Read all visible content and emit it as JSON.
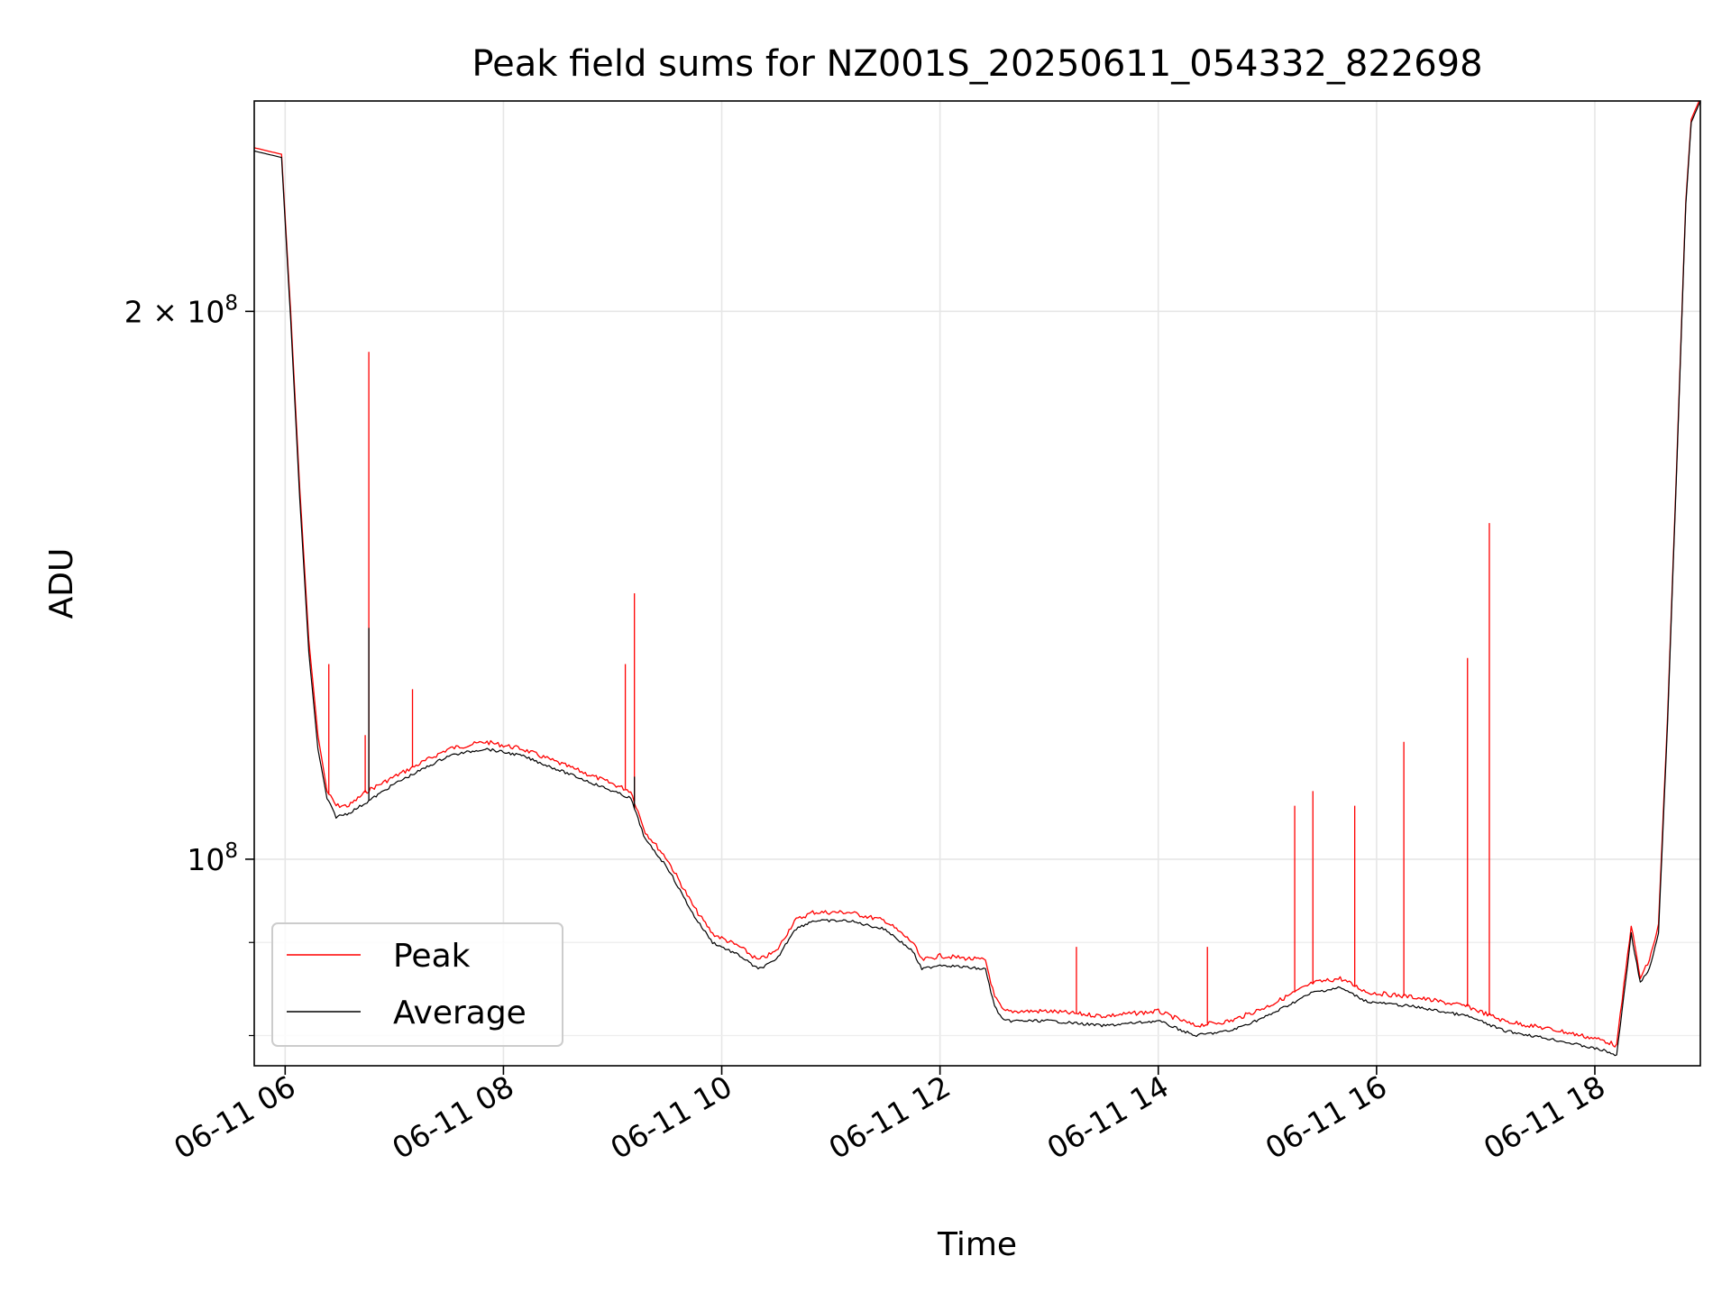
{
  "chart_data": {
    "type": "line",
    "title": "Peak field sums for NZ001S_20250611_054332_822698",
    "xlabel": "Time",
    "ylabel": "ADU",
    "x_axis": "datetime",
    "y_scale": "log",
    "xlim": [
      "2025-06-11 05:43",
      "2025-06-11 18:58"
    ],
    "ylim": [
      77000000,
      261000000
    ],
    "grid": true,
    "legend_position": "lower-left",
    "x_ticks": [
      {
        "x": "2025-06-11 06:00",
        "label": "06-11 06"
      },
      {
        "x": "2025-06-11 08:00",
        "label": "06-11 08"
      },
      {
        "x": "2025-06-11 10:00",
        "label": "06-11 10"
      },
      {
        "x": "2025-06-11 12:00",
        "label": "06-11 12"
      },
      {
        "x": "2025-06-11 14:00",
        "label": "06-11 14"
      },
      {
        "x": "2025-06-11 16:00",
        "label": "06-11 16"
      },
      {
        "x": "2025-06-11 18:00",
        "label": "06-11 18"
      }
    ],
    "y_ticks": [
      {
        "y": 100000000,
        "base": "10",
        "exp": "8",
        "mult": ""
      },
      {
        "y": 200000000,
        "base": "10",
        "exp": "8",
        "mult": "2 × "
      }
    ],
    "series": [
      {
        "name": "Peak",
        "color": "#ff0000",
        "points": [
          [
            "2025-06-11 05:43",
            246000000
          ],
          [
            "2025-06-11 05:58",
            244000000
          ],
          [
            "2025-06-11 06:03",
            200000000
          ],
          [
            "2025-06-11 06:08",
            160000000
          ],
          [
            "2025-06-11 06:13",
            132000000
          ],
          [
            "2025-06-11 06:18",
            117000000
          ],
          [
            "2025-06-11 06:23",
            109000000
          ],
          [
            "2025-06-11 06:28",
            107000000
          ],
          [
            "2025-06-11 06:35",
            107000000
          ],
          [
            "2025-06-11 06:45",
            109000000
          ],
          [
            "2025-06-11 07:00",
            111000000
          ],
          [
            "2025-06-11 07:30",
            115000000
          ],
          [
            "2025-06-11 07:50",
            116000000
          ],
          [
            "2025-06-11 08:10",
            115000000
          ],
          [
            "2025-06-11 08:40",
            112000000
          ],
          [
            "2025-06-11 09:00",
            110000000
          ],
          [
            "2025-06-11 09:10",
            109000000
          ],
          [
            "2025-06-11 09:18",
            103500000
          ],
          [
            "2025-06-11 09:30",
            100000000
          ],
          [
            "2025-06-11 09:45",
            94000000
          ],
          [
            "2025-06-11 09:55",
            91000000
          ],
          [
            "2025-06-11 10:10",
            89500000
          ],
          [
            "2025-06-11 10:20",
            88000000
          ],
          [
            "2025-06-11 10:30",
            89000000
          ],
          [
            "2025-06-11 10:40",
            92500000
          ],
          [
            "2025-06-11 10:50",
            93500000
          ],
          [
            "2025-06-11 11:10",
            93500000
          ],
          [
            "2025-06-11 11:30",
            92500000
          ],
          [
            "2025-06-11 11:45",
            90000000
          ],
          [
            "2025-06-11 11:50",
            88000000
          ],
          [
            "2025-06-11 12:00",
            88500000
          ],
          [
            "2025-06-11 12:25",
            88000000
          ],
          [
            "2025-06-11 12:30",
            84000000
          ],
          [
            "2025-06-11 12:35",
            82500000
          ],
          [
            "2025-06-11 13:00",
            82500000
          ],
          [
            "2025-06-11 13:30",
            82000000
          ],
          [
            "2025-06-11 14:00",
            82500000
          ],
          [
            "2025-06-11 14:20",
            81000000
          ],
          [
            "2025-06-11 14:40",
            81500000
          ],
          [
            "2025-06-11 15:00",
            83000000
          ],
          [
            "2025-06-11 15:25",
            85500000
          ],
          [
            "2025-06-11 15:40",
            86000000
          ],
          [
            "2025-06-11 15:55",
            84500000
          ],
          [
            "2025-06-11 16:20",
            84000000
          ],
          [
            "2025-06-11 16:50",
            83000000
          ],
          [
            "2025-06-11 17:10",
            81500000
          ],
          [
            "2025-06-11 17:40",
            80500000
          ],
          [
            "2025-06-11 18:05",
            79500000
          ],
          [
            "2025-06-11 18:12",
            79000000
          ],
          [
            "2025-06-11 18:20",
            92000000
          ],
          [
            "2025-06-11 18:25",
            86000000
          ],
          [
            "2025-06-11 18:30",
            88000000
          ],
          [
            "2025-06-11 18:35",
            92000000
          ],
          [
            "2025-06-11 18:40",
            120000000
          ],
          [
            "2025-06-11 18:45",
            165000000
          ],
          [
            "2025-06-11 18:50",
            230000000
          ],
          [
            "2025-06-11 18:53",
            255000000
          ],
          [
            "2025-06-11 18:58",
            262000000
          ]
        ],
        "spikes": [
          [
            "2025-06-11 06:24",
            128000000
          ],
          [
            "2025-06-11 06:44",
            117000000
          ],
          [
            "2025-06-11 06:46",
            190000000
          ],
          [
            "2025-06-11 07:10",
            124000000
          ],
          [
            "2025-06-11 09:07",
            128000000
          ],
          [
            "2025-06-11 09:12",
            140000000
          ],
          [
            "2025-06-11 13:15",
            89500000
          ],
          [
            "2025-06-11 14:27",
            89500000
          ],
          [
            "2025-06-11 15:15",
            107000000
          ],
          [
            "2025-06-11 15:25",
            109000000
          ],
          [
            "2025-06-11 15:48",
            107000000
          ],
          [
            "2025-06-11 16:15",
            116000000
          ],
          [
            "2025-06-11 16:50",
            129000000
          ],
          [
            "2025-06-11 17:02",
            153000000
          ]
        ]
      },
      {
        "name": "Average",
        "color": "#000000",
        "points": [
          [
            "2025-06-11 05:43",
            245000000
          ],
          [
            "2025-06-11 05:58",
            243000000
          ],
          [
            "2025-06-11 06:03",
            198000000
          ],
          [
            "2025-06-11 06:08",
            158000000
          ],
          [
            "2025-06-11 06:13",
            130000000
          ],
          [
            "2025-06-11 06:18",
            115000000
          ],
          [
            "2025-06-11 06:23",
            108000000
          ],
          [
            "2025-06-11 06:28",
            105500000
          ],
          [
            "2025-06-11 06:35",
            106000000
          ],
          [
            "2025-06-11 06:45",
            107500000
          ],
          [
            "2025-06-11 07:00",
            110000000
          ],
          [
            "2025-06-11 07:30",
            114000000
          ],
          [
            "2025-06-11 07:50",
            115000000
          ],
          [
            "2025-06-11 08:10",
            114000000
          ],
          [
            "2025-06-11 08:40",
            111000000
          ],
          [
            "2025-06-11 09:00",
            109000000
          ],
          [
            "2025-06-11 09:10",
            108000000
          ],
          [
            "2025-06-11 09:18",
            102500000
          ],
          [
            "2025-06-11 09:30",
            99000000
          ],
          [
            "2025-06-11 09:45",
            93000000
          ],
          [
            "2025-06-11 09:55",
            90000000
          ],
          [
            "2025-06-11 10:10",
            88500000
          ],
          [
            "2025-06-11 10:20",
            87000000
          ],
          [
            "2025-06-11 10:30",
            88000000
          ],
          [
            "2025-06-11 10:40",
            91500000
          ],
          [
            "2025-06-11 10:50",
            92500000
          ],
          [
            "2025-06-11 11:10",
            92500000
          ],
          [
            "2025-06-11 11:30",
            91500000
          ],
          [
            "2025-06-11 11:45",
            89000000
          ],
          [
            "2025-06-11 11:50",
            87000000
          ],
          [
            "2025-06-11 12:00",
            87500000
          ],
          [
            "2025-06-11 12:25",
            87000000
          ],
          [
            "2025-06-11 12:30",
            83000000
          ],
          [
            "2025-06-11 12:35",
            81500000
          ],
          [
            "2025-06-11 13:00",
            81500000
          ],
          [
            "2025-06-11 13:30",
            81000000
          ],
          [
            "2025-06-11 14:00",
            81500000
          ],
          [
            "2025-06-11 14:20",
            80000000
          ],
          [
            "2025-06-11 14:40",
            80500000
          ],
          [
            "2025-06-11 15:00",
            82000000
          ],
          [
            "2025-06-11 15:25",
            84500000
          ],
          [
            "2025-06-11 15:40",
            85000000
          ],
          [
            "2025-06-11 15:55",
            83500000
          ],
          [
            "2025-06-11 16:20",
            83000000
          ],
          [
            "2025-06-11 16:50",
            82000000
          ],
          [
            "2025-06-11 17:10",
            80500000
          ],
          [
            "2025-06-11 17:40",
            79500000
          ],
          [
            "2025-06-11 18:05",
            78500000
          ],
          [
            "2025-06-11 18:12",
            78000000
          ],
          [
            "2025-06-11 18:20",
            91000000
          ],
          [
            "2025-06-11 18:25",
            85500000
          ],
          [
            "2025-06-11 18:30",
            87000000
          ],
          [
            "2025-06-11 18:35",
            91000000
          ],
          [
            "2025-06-11 18:40",
            119000000
          ],
          [
            "2025-06-11 18:45",
            164000000
          ],
          [
            "2025-06-11 18:50",
            229000000
          ],
          [
            "2025-06-11 18:53",
            254000000
          ],
          [
            "2025-06-11 18:58",
            261000000
          ]
        ],
        "spikes": [
          [
            "2025-06-11 06:46",
            134000000
          ],
          [
            "2025-06-11 09:12",
            111000000
          ]
        ]
      }
    ]
  }
}
